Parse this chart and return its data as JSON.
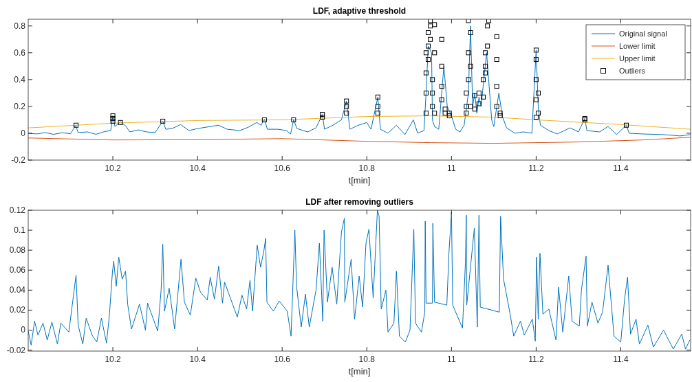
{
  "chart_data": [
    {
      "type": "line",
      "title": "LDF, adaptive threshold",
      "xlabel": "t[min]",
      "xlim": [
        10.0,
        11.565
      ],
      "xticks": [
        10.2,
        10.4,
        10.6,
        10.8,
        11,
        11.2,
        11.4
      ],
      "ylim": [
        -0.2,
        0.85
      ],
      "yticks": [
        -0.2,
        0,
        0.2,
        0.4,
        0.6,
        0.8
      ],
      "legend": "top right",
      "series": [
        {
          "name": "Original signal",
          "color": "#0072bd",
          "x": [
            10.0,
            10.02,
            10.04,
            10.06,
            10.08,
            10.1,
            10.112,
            10.118,
            10.14,
            10.16,
            10.18,
            10.195,
            10.2,
            10.205,
            10.212,
            10.218,
            10.23,
            10.24,
            10.26,
            10.28,
            10.3,
            10.318,
            10.325,
            10.34,
            10.36,
            10.38,
            10.4,
            10.43,
            10.45,
            10.47,
            10.5,
            10.52,
            10.54,
            10.55,
            10.558,
            10.565,
            10.59,
            10.61,
            10.62,
            10.627,
            10.635,
            10.66,
            10.68,
            10.695,
            10.7,
            10.72,
            10.74,
            10.752,
            10.76,
            10.78,
            10.8,
            10.81,
            10.826,
            10.832,
            10.85,
            10.87,
            10.89,
            10.91,
            10.92,
            10.935,
            10.94,
            10.945,
            10.953,
            10.955,
            10.96,
            10.97,
            10.982,
            10.99,
            11.0,
            11.01,
            11.02,
            11.03,
            11.04,
            11.045,
            11.05,
            11.055,
            11.06,
            11.065,
            11.07,
            11.078,
            11.083,
            11.095,
            11.1,
            11.112,
            11.12,
            11.13,
            11.15,
            11.17,
            11.19,
            11.2,
            11.205,
            11.21,
            11.23,
            11.25,
            11.28,
            11.3,
            11.315,
            11.32,
            11.35,
            11.37,
            11.39,
            11.413,
            11.42,
            11.45,
            11.5,
            11.54,
            11.565
          ],
          "values": [
            0.0,
            -0.005,
            0.005,
            -0.008,
            0.004,
            -0.004,
            0.06,
            0.005,
            0.01,
            -0.008,
            0.012,
            0.02,
            0.13,
            0.05,
            0.07,
            0.085,
            0.055,
            0.01,
            0.025,
            0.01,
            0.005,
            0.09,
            0.03,
            0.035,
            0.065,
            0.02,
            0.035,
            0.05,
            0.06,
            0.03,
            0.02,
            0.045,
            0.08,
            0.06,
            0.105,
            0.03,
            0.03,
            0.02,
            -0.005,
            0.1,
            0.035,
            0.01,
            0.04,
            0.14,
            0.03,
            0.06,
            0.1,
            0.24,
            0.03,
            0.06,
            0.08,
            0.03,
            0.27,
            0.03,
            0.0,
            0.06,
            -0.01,
            0.1,
            0.0,
            0.02,
            0.3,
            0.65,
            0.6,
            0.1,
            0.05,
            0.03,
            0.5,
            0.2,
            0.13,
            0.03,
            0.01,
            0.06,
            0.3,
            0.8,
            0.2,
            0.3,
            0.15,
            0.27,
            0.2,
            0.45,
            0.6,
            0.1,
            0.05,
            0.3,
            0.13,
            0.04,
            0.0,
            0.01,
            0.0,
            0.62,
            0.2,
            0.06,
            0.02,
            -0.005,
            0.04,
            0.01,
            0.11,
            0.02,
            0.01,
            0.05,
            -0.01,
            0.06,
            0.0,
            -0.005,
            -0.01,
            -0.02,
            -0.01
          ]
        },
        {
          "name": "Lower limit",
          "color": "#d95319",
          "x": [
            10.0,
            10.2,
            10.4,
            10.6,
            10.8,
            10.95,
            11.1,
            11.3,
            11.45,
            11.565
          ],
          "values": [
            -0.035,
            -0.05,
            -0.048,
            -0.04,
            -0.06,
            -0.07,
            -0.075,
            -0.065,
            -0.05,
            -0.03
          ]
        },
        {
          "name": "Upper limit",
          "color": "#edb120",
          "x": [
            10.0,
            10.2,
            10.4,
            10.6,
            10.8,
            10.95,
            11.1,
            11.2,
            11.4,
            11.565
          ],
          "values": [
            0.04,
            0.075,
            0.095,
            0.1,
            0.125,
            0.13,
            0.12,
            0.1,
            0.065,
            0.03
          ]
        },
        {
          "name": "Outliers",
          "type": "scatter",
          "marker": "square",
          "color": "#000000",
          "x": [
            10.113,
            10.2,
            10.2,
            10.2,
            10.218,
            10.318,
            10.558,
            10.627,
            10.695,
            10.695,
            10.752,
            10.752,
            10.752,
            10.826,
            10.826,
            10.826,
            10.94,
            10.94,
            10.94,
            10.94,
            10.945,
            10.945,
            10.945,
            10.95,
            10.95,
            10.95,
            10.955,
            10.955,
            10.955,
            10.96,
            10.96,
            10.96,
            10.977,
            10.977,
            10.977,
            10.977,
            10.985,
            10.985,
            10.995,
            10.995,
            11.035,
            11.035,
            11.035,
            11.04,
            11.04,
            11.04,
            11.045,
            11.045,
            11.045,
            11.055,
            11.055,
            11.065,
            11.065,
            11.075,
            11.075,
            11.08,
            11.08,
            11.08,
            11.085,
            11.085,
            11.088,
            11.107,
            11.107,
            11.107,
            11.107,
            11.115,
            11.115,
            11.2,
            11.2,
            11.2,
            11.2,
            11.2,
            11.205,
            11.205,
            11.315,
            11.315,
            11.413
          ],
          "values": [
            0.06,
            0.09,
            0.11,
            0.13,
            0.08,
            0.09,
            0.1,
            0.1,
            0.14,
            0.12,
            0.15,
            0.2,
            0.24,
            0.15,
            0.2,
            0.27,
            0.15,
            0.3,
            0.45,
            0.6,
            0.65,
            0.55,
            0.75,
            0.84,
            0.8,
            0.7,
            0.4,
            0.3,
            0.2,
            0.15,
            0.6,
            0.81,
            0.7,
            0.5,
            0.35,
            0.25,
            0.18,
            0.15,
            0.13,
            0.15,
            0.3,
            0.2,
            0.15,
            0.84,
            0.6,
            0.4,
            0.75,
            0.5,
            0.2,
            0.28,
            0.18,
            0.3,
            0.22,
            0.27,
            0.4,
            0.5,
            0.6,
            0.45,
            0.8,
            0.65,
            0.84,
            0.72,
            0.55,
            0.35,
            0.2,
            0.15,
            0.13,
            0.12,
            0.25,
            0.4,
            0.55,
            0.62,
            0.3,
            0.15,
            0.1,
            0.11,
            0.06
          ]
        }
      ]
    },
    {
      "type": "line",
      "title": "LDF after removing outliers",
      "xlabel": "t[min]",
      "xlim": [
        10.0,
        11.565
      ],
      "xticks": [
        10.2,
        10.4,
        10.6,
        10.8,
        11,
        11.2,
        11.4
      ],
      "ylim": [
        -0.021,
        0.12
      ],
      "yticks": [
        -0.02,
        0,
        0.02,
        0.04,
        0.06,
        0.08,
        0.1,
        0.12
      ],
      "series": [
        {
          "color": "#0072bd",
          "x": [
            10.0,
            10.007,
            10.015,
            10.023,
            10.035,
            10.045,
            10.056,
            10.069,
            10.077,
            10.096,
            10.113,
            10.118,
            10.129,
            10.137,
            10.151,
            10.162,
            10.173,
            10.185,
            10.192,
            10.199,
            10.202,
            10.208,
            10.214,
            10.222,
            10.23,
            10.235,
            10.244,
            10.263,
            10.277,
            10.282,
            10.306,
            10.314,
            10.318,
            10.322,
            10.333,
            10.346,
            10.361,
            10.369,
            10.383,
            10.396,
            10.407,
            10.423,
            10.43,
            10.44,
            10.45,
            10.459,
            10.464,
            10.494,
            10.505,
            10.516,
            10.524,
            10.53,
            10.541,
            10.549,
            10.557,
            10.561,
            10.564,
            10.579,
            10.593,
            10.612,
            10.621,
            10.63,
            10.634,
            10.645,
            10.655,
            10.664,
            10.68,
            10.688,
            10.696,
            10.699,
            10.707,
            10.718,
            10.729,
            10.74,
            10.747,
            10.748,
            10.763,
            10.771,
            10.782,
            10.79,
            10.798,
            10.805,
            10.815,
            10.825,
            10.829,
            10.834,
            10.845,
            10.85,
            10.864,
            10.87,
            10.877,
            10.891,
            10.902,
            10.911,
            10.915,
            10.929,
            10.937,
            10.938,
            10.94,
            10.955,
            10.956,
            10.96,
            10.989,
            10.994,
            11.0,
            11.003,
            11.019,
            11.026,
            11.033,
            11.035,
            11.036,
            11.054,
            11.061,
            11.065,
            11.068,
            11.113,
            11.116,
            11.123,
            11.139,
            11.147,
            11.163,
            11.172,
            11.191,
            11.198,
            11.201,
            11.205,
            11.209,
            11.216,
            11.23,
            11.247,
            11.253,
            11.263,
            11.277,
            11.285,
            11.302,
            11.307,
            11.318,
            11.321,
            11.332,
            11.346,
            11.357,
            11.37,
            11.384,
            11.4,
            11.409,
            11.416,
            11.423,
            11.436,
            11.444,
            11.464,
            11.477,
            11.501,
            11.524,
            11.544,
            11.553,
            11.563
          ],
          "values": [
            -0.001,
            -0.015,
            0.009,
            -0.005,
            0.007,
            -0.01,
            0.008,
            -0.014,
            0.007,
            -0.002,
            0.055,
            0.005,
            -0.014,
            0.012,
            -0.005,
            -0.012,
            0.012,
            -0.013,
            0.016,
            0.058,
            0.069,
            0.044,
            0.073,
            0.051,
            0.059,
            0.026,
            0.001,
            0.026,
            0.0,
            0.027,
            -0.001,
            0.04,
            0.086,
            0.019,
            0.042,
            0.001,
            0.071,
            0.028,
            0.015,
            0.052,
            0.038,
            0.03,
            0.053,
            0.031,
            0.064,
            0.027,
            0.048,
            0.013,
            0.035,
            0.021,
            0.05,
            0.019,
            0.085,
            0.063,
            0.08,
            0.092,
            0.028,
            0.019,
            0.029,
            0.019,
            -0.006,
            0.1,
            0.044,
            0.003,
            0.036,
            0.003,
            0.04,
            0.087,
            0.009,
            0.1,
            0.028,
            0.063,
            0.026,
            0.098,
            0.112,
            0.028,
            0.071,
            0.011,
            0.054,
            0.023,
            0.087,
            0.101,
            0.032,
            0.12,
            0.114,
            0.021,
            0.04,
            -0.002,
            0.007,
            0.059,
            -0.006,
            -0.012,
            0.0,
            0.101,
            0.007,
            -0.002,
            0.018,
            0.109,
            0.027,
            0.027,
            0.107,
            0.028,
            0.025,
            0.077,
            0.118,
            0.025,
            0.009,
            0.002,
            0.068,
            0.115,
            0.025,
            0.102,
            0.003,
            0.115,
            0.023,
            0.018,
            0.114,
            0.051,
            0.015,
            -0.006,
            0.009,
            -0.005,
            0.011,
            -0.011,
            0.073,
            0.011,
            0.077,
            0.016,
            0.021,
            -0.01,
            0.043,
            -0.002,
            0.054,
            0.009,
            0.004,
            0.04,
            0.074,
            0.004,
            0.028,
            0.007,
            0.018,
            0.065,
            -0.006,
            -0.012,
            0.031,
            0.053,
            -0.004,
            0.011,
            -0.014,
            0.005,
            -0.017,
            0.0,
            -0.019,
            -0.004,
            -0.019,
            -0.01
          ]
        }
      ]
    }
  ]
}
